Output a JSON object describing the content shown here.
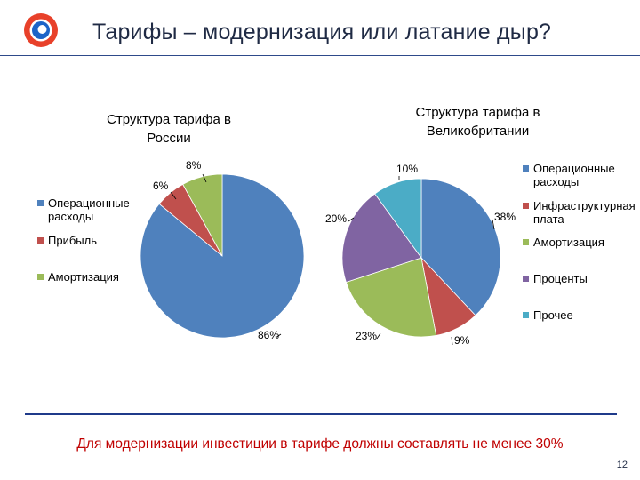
{
  "slide": {
    "title": "Тарифы – модернизация или латание дыр?",
    "footer_note": "Для модернизации инвестиции в тарифе должны составлять не менее 30%",
    "page_number": "12"
  },
  "colors": {
    "blue": "#4f81bd",
    "red": "#c0504d",
    "green": "#9bbb59",
    "purple": "#8064a2",
    "cyan": "#4bacc6"
  },
  "chart_data": [
    {
      "type": "pie",
      "title": "Структура тарифа в России",
      "slices": [
        {
          "label": "Операционные расходы",
          "value": 86,
          "display": "86%",
          "color": "#4f81bd"
        },
        {
          "label": "Прибыль",
          "value": 6,
          "display": "6%",
          "color": "#c0504d"
        },
        {
          "label": "Амортизация",
          "value": 8,
          "display": "8%",
          "color": "#9bbb59"
        }
      ],
      "legend_position": "left"
    },
    {
      "type": "pie",
      "title": "Структура тарифа в Великобритании",
      "slices": [
        {
          "label": "Операционные расходы",
          "value": 38,
          "display": "38%",
          "color": "#4f81bd"
        },
        {
          "label": "Инфраструктурная плата",
          "value": 9,
          "display": "9%",
          "color": "#c0504d"
        },
        {
          "label": "Амортизация",
          "value": 23,
          "display": "23%",
          "color": "#9bbb59"
        },
        {
          "label": "Проценты",
          "value": 20,
          "display": "20%",
          "color": "#8064a2"
        },
        {
          "label": "Прочее",
          "value": 10,
          "display": "10%",
          "color": "#4bacc6"
        }
      ],
      "legend_position": "right"
    }
  ]
}
